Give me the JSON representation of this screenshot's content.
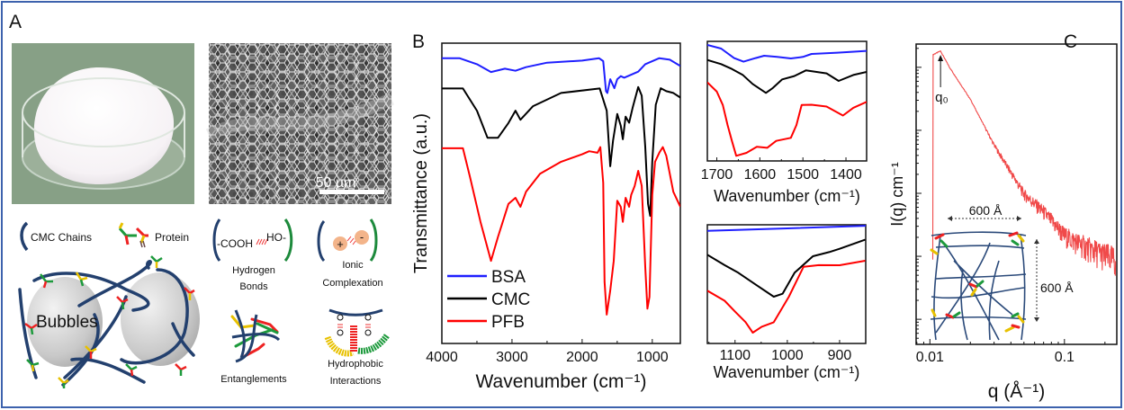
{
  "panels": {
    "a_label": "A",
    "b_label": "B",
    "c_label": "C"
  },
  "panel_a": {
    "scale_bar": "50 µm",
    "legend_cmc": "CMC Chains",
    "legend_protein": "Protein",
    "bubbles": "Bubbles",
    "hbond_left": "-COOH",
    "hbond_right": "HO-",
    "hbond_label_1": "Hydrogen",
    "hbond_label_2": "Bonds",
    "ionic_plus": "+",
    "ionic_minus": "-",
    "ionic_label_1": "Ionic",
    "ionic_label_2": "Complexation",
    "entangle_label": "Entanglements",
    "hydrophobic_label_1": "Hydrophobic",
    "hydrophobic_label_2": "Interactions",
    "colors": {
      "chain": "#23406e",
      "green_chain": "#1d8a3c",
      "ion": "#f3b48a"
    }
  },
  "chart_data": [
    {
      "id": "ftir_main",
      "type": "line",
      "title": "",
      "xlabel": "Wavenumber (cm⁻¹)",
      "ylabel": "Transmittance (a.u.)",
      "xlim": [
        4000,
        600
      ],
      "ylim": [
        0,
        100
      ],
      "xticks": [
        4000,
        3000,
        2000,
        1000
      ],
      "xtick_labels": [
        "4000",
        "3000",
        "2000",
        "1000"
      ],
      "legend": "bottom-left",
      "grid": false,
      "series": [
        {
          "name": "BSA",
          "color": "#1f1fff",
          "points": [
            [
              4000,
              95
            ],
            [
              3750,
              95
            ],
            [
              3500,
              93
            ],
            [
              3300,
              90.4
            ],
            [
              3100,
              91.5
            ],
            [
              2950,
              90.8
            ],
            [
              2800,
              92
            ],
            [
              2500,
              93.5
            ],
            [
              2000,
              94.2
            ],
            [
              1760,
              95
            ],
            [
              1700,
              94
            ],
            [
              1660,
              84
            ],
            [
              1640,
              83.4
            ],
            [
              1600,
              88
            ],
            [
              1540,
              85
            ],
            [
              1500,
              88
            ],
            [
              1450,
              89
            ],
            [
              1400,
              88.5
            ],
            [
              1300,
              89.5
            ],
            [
              1200,
              90.5
            ],
            [
              1100,
              93
            ],
            [
              900,
              95
            ],
            [
              750,
              94.5
            ],
            [
              600,
              92.4
            ]
          ]
        },
        {
          "name": "CMC",
          "color": "#000000",
          "points": [
            [
              4000,
              84.9
            ],
            [
              3700,
              84.9
            ],
            [
              3500,
              77.5
            ],
            [
              3350,
              68.5
            ],
            [
              3200,
              68.5
            ],
            [
              3050,
              73.4
            ],
            [
              2950,
              77.5
            ],
            [
              2880,
              74.5
            ],
            [
              2700,
              79
            ],
            [
              2300,
              83.4
            ],
            [
              1750,
              84.9
            ],
            [
              1650,
              77.5
            ],
            [
              1600,
              59
            ],
            [
              1560,
              67.5
            ],
            [
              1500,
              76.4
            ],
            [
              1450,
              72.5
            ],
            [
              1420,
              68
            ],
            [
              1380,
              75.5
            ],
            [
              1330,
              73.5
            ],
            [
              1280,
              78.5
            ],
            [
              1200,
              85.4
            ],
            [
              1150,
              82.5
            ],
            [
              1100,
              65.5
            ],
            [
              1060,
              46.5
            ],
            [
              1030,
              42.5
            ],
            [
              1000,
              60.5
            ],
            [
              950,
              79.5
            ],
            [
              880,
              85
            ],
            [
              800,
              84
            ],
            [
              700,
              83.4
            ],
            [
              600,
              81.9
            ]
          ]
        },
        {
          "name": "PFB",
          "color": "#ff0000",
          "points": [
            [
              4000,
              65
            ],
            [
              3700,
              65
            ],
            [
              3600,
              55.5
            ],
            [
              3450,
              40.5
            ],
            [
              3300,
              27.5
            ],
            [
              3200,
              35.5
            ],
            [
              3050,
              46.5
            ],
            [
              2950,
              48.5
            ],
            [
              2880,
              45.5
            ],
            [
              2800,
              50.5
            ],
            [
              2600,
              56.5
            ],
            [
              2300,
              60.5
            ],
            [
              2000,
              63
            ],
            [
              1900,
              64
            ],
            [
              1780,
              63.5
            ],
            [
              1740,
              65.4
            ],
            [
              1700,
              53.5
            ],
            [
              1680,
              20.5
            ],
            [
              1650,
              9.6
            ],
            [
              1600,
              17.6
            ],
            [
              1550,
              27.5
            ],
            [
              1500,
              47.5
            ],
            [
              1450,
              45.5
            ],
            [
              1420,
              40.5
            ],
            [
              1380,
              48.5
            ],
            [
              1330,
              45.5
            ],
            [
              1300,
              49.5
            ],
            [
              1250,
              52.5
            ],
            [
              1200,
              57.5
            ],
            [
              1150,
              52.5
            ],
            [
              1100,
              25.5
            ],
            [
              1070,
              11.6
            ],
            [
              1040,
              15.5
            ],
            [
              1000,
              49.5
            ],
            [
              960,
              60.5
            ],
            [
              900,
              63.5
            ],
            [
              850,
              65.4
            ],
            [
              800,
              62.5
            ],
            [
              700,
              50.5
            ],
            [
              600,
              45.5
            ]
          ]
        }
      ]
    },
    {
      "id": "ftir_inset_amide",
      "type": "line",
      "xlabel": "Wavenumber (cm⁻¹)",
      "ylabel": "",
      "xlim": [
        1722,
        1352
      ],
      "ylim": [
        0,
        100
      ],
      "xticks": [
        1700,
        1600,
        1500,
        1400
      ],
      "xtick_labels": [
        "1700",
        "1600",
        "1500",
        "1400"
      ],
      "series": [
        {
          "name": "BSA",
          "color": "#1f1fff",
          "points": [
            [
              1722,
              97
            ],
            [
              1690,
              94
            ],
            [
              1660,
              86
            ],
            [
              1638,
              83
            ],
            [
              1610,
              86
            ],
            [
              1590,
              88
            ],
            [
              1560,
              87
            ],
            [
              1528,
              85.7
            ],
            [
              1500,
              87
            ],
            [
              1480,
              89.5
            ],
            [
              1420,
              90.5
            ],
            [
              1352,
              92
            ]
          ]
        },
        {
          "name": "CMC",
          "color": "#000000",
          "points": [
            [
              1722,
              84.4
            ],
            [
              1690,
              81
            ],
            [
              1665,
              76.9
            ],
            [
              1640,
              72
            ],
            [
              1617,
              64.4
            ],
            [
              1586,
              56.9
            ],
            [
              1570,
              61
            ],
            [
              1548,
              68.2
            ],
            [
              1520,
              71
            ],
            [
              1493,
              75.7
            ],
            [
              1445,
              73.2
            ],
            [
              1417,
              66.9
            ],
            [
              1383,
              71.9
            ],
            [
              1352,
              74.4
            ]
          ]
        },
        {
          "name": "PFB",
          "color": "#ff0000",
          "points": [
            [
              1722,
              65.7
            ],
            [
              1700,
              58
            ],
            [
              1686,
              46.8
            ],
            [
              1675,
              30
            ],
            [
              1665,
              16.8
            ],
            [
              1655,
              4.3
            ],
            [
              1631,
              6.8
            ],
            [
              1607,
              11.8
            ],
            [
              1583,
              11
            ],
            [
              1562,
              16.8
            ],
            [
              1528,
              19.3
            ],
            [
              1515,
              30
            ],
            [
              1503,
              46.8
            ],
            [
              1480,
              47
            ],
            [
              1445,
              45.5
            ],
            [
              1407,
              38
            ],
            [
              1383,
              44.4
            ],
            [
              1352,
              49.4
            ]
          ]
        }
      ]
    },
    {
      "id": "ftir_inset_cooh",
      "type": "line",
      "xlabel": "Wavenumber (cm⁻¹)",
      "ylabel": "",
      "xlim": [
        1153,
        850
      ],
      "ylim": [
        0,
        100
      ],
      "xticks": [
        1100,
        1000,
        900
      ],
      "xtick_labels": [
        "1100",
        "1000",
        "900"
      ],
      "series": [
        {
          "name": "BSA",
          "color": "#1f1fff",
          "points": [
            [
              1153,
              94.9
            ],
            [
              1000,
              97
            ],
            [
              850,
              99.2
            ]
          ]
        },
        {
          "name": "CMC",
          "color": "#000000",
          "points": [
            [
              1153,
              74.8
            ],
            [
              1120,
              66
            ],
            [
              1094,
              59.6
            ],
            [
              1060,
              49.5
            ],
            [
              1026,
              39.4
            ],
            [
              1009,
              41.9
            ],
            [
              986,
              59.6
            ],
            [
              951,
              73.5
            ],
            [
              920,
              77
            ],
            [
              900,
              79.8
            ],
            [
              851,
              87.4
            ]
          ]
        },
        {
          "name": "PFB",
          "color": "#ff0000",
          "points": [
            [
              1153,
              44.5
            ],
            [
              1120,
              36
            ],
            [
              1100,
              26.8
            ],
            [
              1080,
              18
            ],
            [
              1066,
              9.1
            ],
            [
              1049,
              14.1
            ],
            [
              1026,
              17.9
            ],
            [
              997,
              39.4
            ],
            [
              969,
              64.6
            ],
            [
              940,
              66
            ],
            [
              900,
              65.9
            ],
            [
              851,
              69.7
            ]
          ]
        }
      ]
    },
    {
      "id": "saxs",
      "type": "line",
      "xlabel": "q (Å⁻¹)",
      "ylabel": "I(q) cm⁻¹",
      "xscale": "log",
      "yscale": "log",
      "xlim": [
        0.0079,
        0.245
      ],
      "ylim": [
        0.4,
        23400
      ],
      "xticks": [
        0.01,
        0.1
      ],
      "xtick_labels": [
        "0.01",
        "0.1"
      ],
      "yticks": [
        1,
        10,
        100,
        1000,
        10000
      ],
      "annotations": {
        "peak": "q₀",
        "peak_q": 0.012,
        "width": "600 Å",
        "height": "600 Å"
      },
      "series": [
        {
          "name": "SAXS",
          "color": "#f04a4a",
          "points": [
            [
              0.0105,
              15800
            ],
            [
              0.012,
              18200
            ],
            [
              0.014,
              10000
            ],
            [
              0.02,
              3100
            ],
            [
              0.03,
              590
            ],
            [
              0.05,
              100
            ],
            [
              0.07,
              52
            ],
            [
              0.1,
              22
            ],
            [
              0.15,
              14
            ],
            [
              0.24,
              9
            ]
          ]
        }
      ]
    }
  ]
}
